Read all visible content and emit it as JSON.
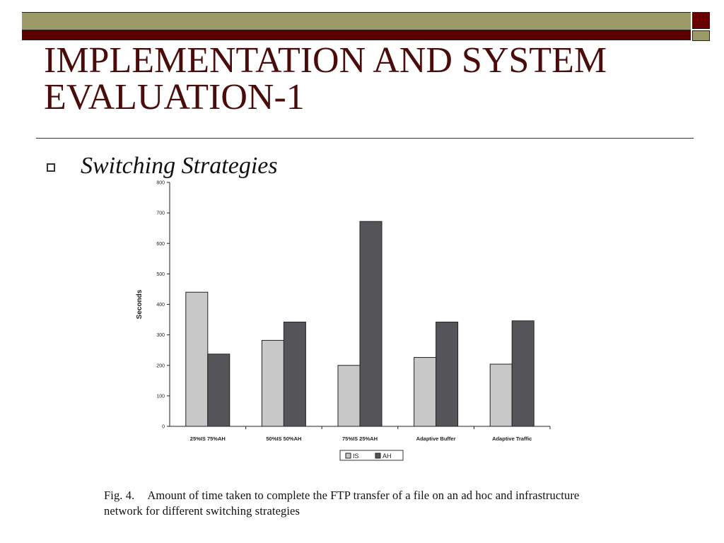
{
  "slide": {
    "title": "IMPLEMENTATION AND SYSTEM EVALUATION-1",
    "bullet": "Switching Strategies"
  },
  "caption": {
    "label": "Fig. 4.",
    "text": "Amount of time taken to complete the FTP transfer of a file on an ad hoc and infrastructure network for different switching strategies"
  },
  "colors": {
    "bar_bg": "#9c9a69",
    "bar_dark": "#5c0000",
    "title": "#4a0b0b",
    "series_is": "#c8c8c8",
    "series_ah": "#555559"
  },
  "chart_data": {
    "type": "bar",
    "ylabel": "Seconds",
    "xlabel": "",
    "ylim": [
      0,
      800
    ],
    "yticks": [
      0,
      100,
      200,
      300,
      400,
      500,
      600,
      700,
      800
    ],
    "categories": [
      "25%IS 75%AH",
      "50%IS 50%AH",
      "75%IS 25%AH",
      "Adaptive Buffer",
      "Adaptive Traffic"
    ],
    "series": [
      {
        "name": "IS",
        "values": [
          440,
          282,
          200,
          226,
          204
        ]
      },
      {
        "name": "AH",
        "values": [
          237,
          342,
          672,
          342,
          346
        ]
      }
    ],
    "legend": "bottom-center",
    "grid": false
  }
}
